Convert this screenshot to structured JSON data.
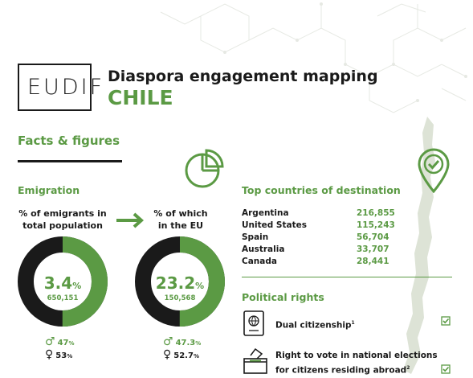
{
  "logo": {
    "text": "EUDIF"
  },
  "header": {
    "title": "Diaspora engagement mapping",
    "country": "CHILE"
  },
  "facts_heading": "Facts & figures",
  "emigration": {
    "heading": "Emigration",
    "left": {
      "label_line1": "% of emigrants in",
      "label_line2": "total population",
      "value": "3.4",
      "unit": "%",
      "fraction": 0.034,
      "count": "650,151",
      "male": "47",
      "female": "53",
      "pct_suffix": "%"
    },
    "right": {
      "label_line1": "% of which",
      "label_line2": "in the EU",
      "value": "23.2",
      "unit": "%",
      "fraction": 0.232,
      "count": "150,568",
      "male": "47.3",
      "female": "52.7",
      "pct_suffix": "%"
    }
  },
  "destinations": {
    "heading": "Top countries of destination",
    "rows": [
      {
        "country": "Argentina",
        "value": "216,855"
      },
      {
        "country": "United States",
        "value": "115,243"
      },
      {
        "country": "Spain",
        "value": "56,704"
      },
      {
        "country": "Australia",
        "value": "33,707"
      },
      {
        "country": "Canada",
        "value": "28,441"
      }
    ]
  },
  "political_rights": {
    "heading": "Political rights",
    "items": [
      {
        "label": "Dual citizenship",
        "note": "1",
        "checked": true
      },
      {
        "label_line1": "Right to vote in national elections",
        "label_line2": "for citizens residing abroad",
        "note": "2",
        "checked": true
      }
    ]
  },
  "colors": {
    "accent": "#5b9a44",
    "dark": "#1a1a1a",
    "map": "#dde3d6"
  },
  "icons": {
    "pie": "pie-chart-icon",
    "pin": "map-pin-check-icon",
    "arrow": "arrow-right-icon",
    "passport": "passport-icon",
    "ballot": "ballot-box-icon",
    "check": "checkbox-checked-icon"
  }
}
